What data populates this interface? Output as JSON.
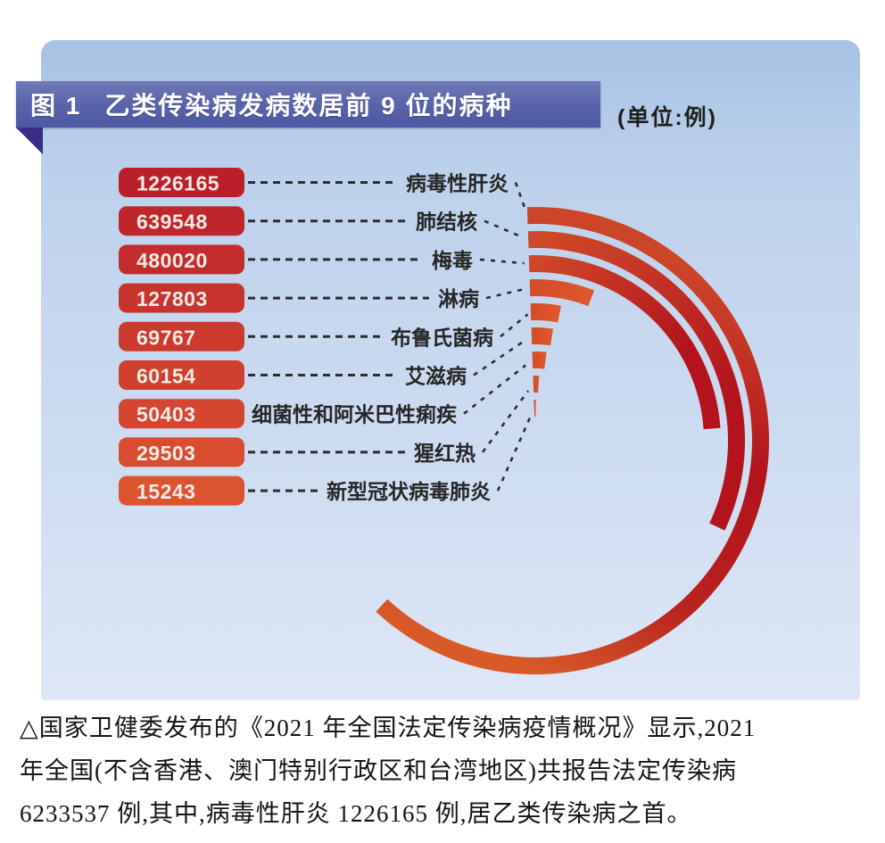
{
  "figure": {
    "banner_label": "图 1",
    "banner_title": "乙类传染病发病数居前 9 位的病种",
    "unit_label": "(单位:例)",
    "caption_lines": [
      "△国家卫健委发布的《2021 年全国法定传染病疫情概况》显示,2021",
      "年全国(不含香港、澳门特别行政区和台湾地区)共报告法定传染病",
      "6233537 例,其中,病毒性肝炎 1226165 例,居乙类传染病之首。"
    ]
  },
  "colors": {
    "banner": "#5a65ab",
    "banner_fold": "#3a2d84",
    "panel_top": "#a7c2e4",
    "panel_bottom": "#dde7f6",
    "bar_first": "#bb1f2b",
    "bar_last": "#dc5330",
    "value_text": "#f7ebe5",
    "label_text": "#262626",
    "leader_line": "#2d2d2d",
    "arc_deep_red": "#b2131d",
    "arc_vermilion": "#d04b29",
    "arc_orange": "#d85a28"
  },
  "chart_data": {
    "type": "bar",
    "variant": "radial-arc-infographic",
    "title": "乙类传染病发病数居前 9 位的病种",
    "unit": "例",
    "categories": [
      "病毒性肝炎",
      "肺结核",
      "梅毒",
      "淋病",
      "布鲁氏菌病",
      "艾滋病",
      "细菌性和阿米巴性痢疾",
      "猩红热",
      "新型冠状病毒肺炎"
    ],
    "values": [
      1226165,
      639548,
      480020,
      127803,
      69767,
      60154,
      50403,
      29503,
      15243
    ],
    "max_value": 1226165,
    "xlabel": "",
    "ylabel": "",
    "legend": "none",
    "grid": false
  }
}
